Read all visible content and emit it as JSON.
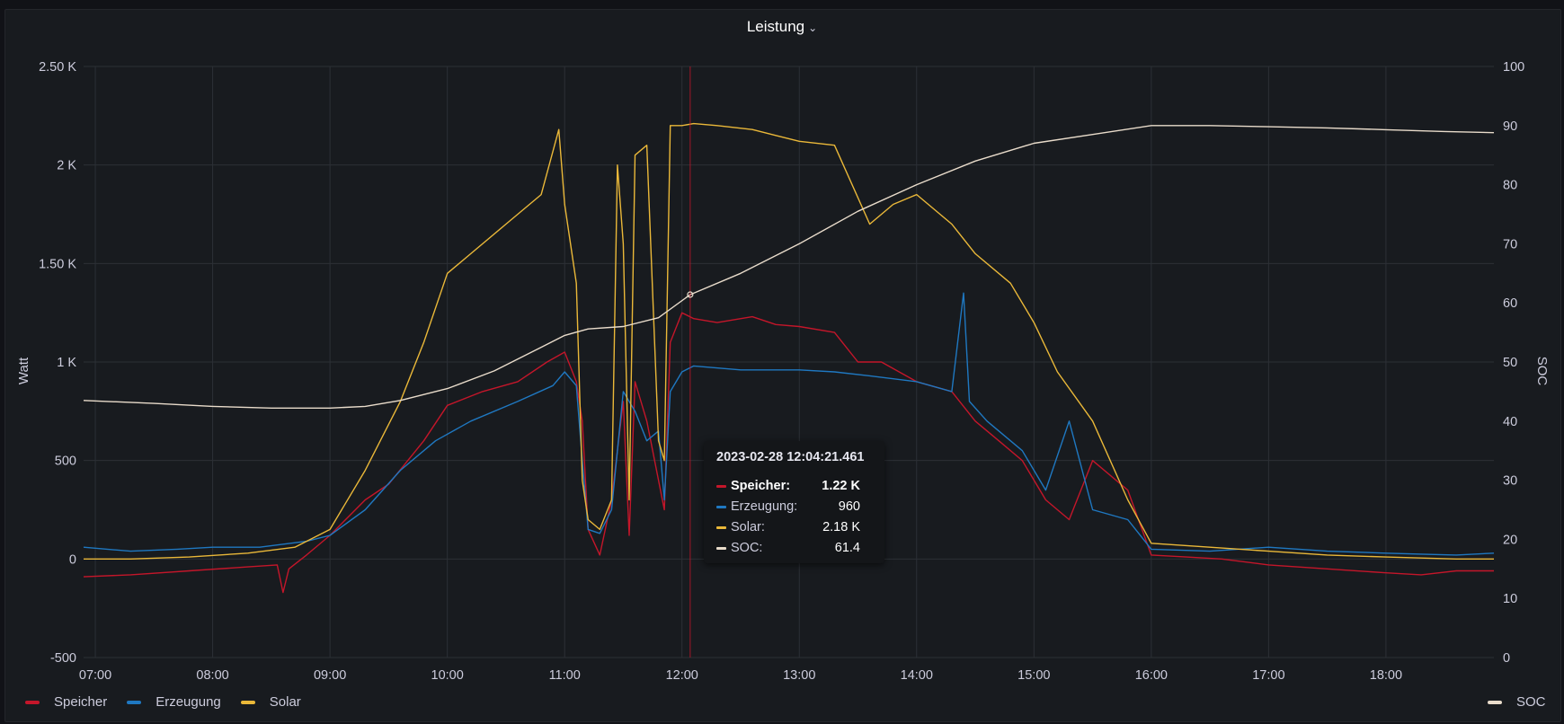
{
  "panel": {
    "title": "Leistung",
    "menu_icon": "chevron-down-icon"
  },
  "chart_data": {
    "type": "line",
    "x_ticks": [
      "07:00",
      "08:00",
      "09:00",
      "10:00",
      "11:00",
      "12:00",
      "13:00",
      "14:00",
      "15:00",
      "16:00",
      "17:00",
      "18:00"
    ],
    "y_left": {
      "label": "Watt",
      "ticks": [
        "-500",
        "0",
        "500",
        "1 K",
        "1.50 K",
        "2 K",
        "2.50 K"
      ],
      "range": [
        -500,
        2500
      ]
    },
    "y_right": {
      "label": "SOC",
      "ticks": [
        "0",
        "10",
        "20",
        "30",
        "40",
        "50",
        "60",
        "70",
        "80",
        "90",
        "100"
      ],
      "range": [
        0,
        100
      ]
    },
    "x_range_hours": [
      6.9,
      18.92
    ],
    "grid": true,
    "legend_placement": "bottom",
    "series": [
      {
        "name": "Speicher",
        "color": "#c4162a",
        "axis": "left",
        "x": [
          6.9,
          7.3,
          7.8,
          8.3,
          8.55,
          8.6,
          8.65,
          8.8,
          9.0,
          9.3,
          9.5,
          9.8,
          10.0,
          10.3,
          10.6,
          10.85,
          11.0,
          11.1,
          11.15,
          11.2,
          11.3,
          11.4,
          11.5,
          11.55,
          11.6,
          11.7,
          11.8,
          11.85,
          11.9,
          12.0,
          12.1,
          12.3,
          12.6,
          12.8,
          13.0,
          13.3,
          13.5,
          13.7,
          14.0,
          14.3,
          14.5,
          14.7,
          14.9,
          15.1,
          15.3,
          15.5,
          15.8,
          16.0,
          16.3,
          16.6,
          17.0,
          17.5,
          18.0,
          18.3,
          18.6,
          18.92
        ],
        "y": [
          -90,
          -80,
          -60,
          -40,
          -30,
          -170,
          -50,
          20,
          120,
          300,
          380,
          600,
          780,
          850,
          900,
          1000,
          1050,
          900,
          700,
          150,
          20,
          300,
          800,
          120,
          900,
          700,
          400,
          250,
          1100,
          1250,
          1220,
          1200,
          1230,
          1190,
          1180,
          1150,
          1000,
          1000,
          900,
          850,
          700,
          600,
          500,
          300,
          200,
          500,
          350,
          20,
          10,
          0,
          -30,
          -50,
          -70,
          -80,
          -60,
          -60
        ]
      },
      {
        "name": "Erzeugung",
        "color": "#1f78c1",
        "axis": "left",
        "x": [
          6.9,
          7.3,
          7.7,
          8.0,
          8.4,
          8.8,
          9.0,
          9.3,
          9.6,
          9.9,
          10.2,
          10.6,
          10.9,
          11.0,
          11.1,
          11.15,
          11.2,
          11.3,
          11.4,
          11.5,
          11.6,
          11.7,
          11.8,
          11.85,
          11.9,
          12.0,
          12.1,
          12.5,
          13.0,
          13.3,
          13.6,
          14.0,
          14.3,
          14.4,
          14.45,
          14.6,
          14.9,
          15.1,
          15.3,
          15.5,
          15.8,
          16.0,
          16.5,
          17.0,
          17.5,
          18.0,
          18.3,
          18.6,
          18.92
        ],
        "y": [
          60,
          40,
          50,
          60,
          60,
          90,
          120,
          250,
          450,
          600,
          700,
          800,
          880,
          950,
          880,
          500,
          150,
          130,
          250,
          850,
          750,
          600,
          650,
          300,
          850,
          950,
          980,
          960,
          960,
          950,
          930,
          900,
          850,
          1350,
          800,
          700,
          550,
          350,
          700,
          250,
          200,
          50,
          40,
          60,
          40,
          30,
          25,
          20,
          30
        ]
      },
      {
        "name": "Solar",
        "color": "#eab839",
        "axis": "left",
        "x": [
          6.9,
          7.3,
          7.8,
          8.3,
          8.7,
          9.0,
          9.3,
          9.6,
          9.8,
          10.0,
          10.2,
          10.5,
          10.8,
          10.95,
          11.0,
          11.1,
          11.15,
          11.2,
          11.3,
          11.4,
          11.45,
          11.5,
          11.55,
          11.6,
          11.7,
          11.8,
          11.85,
          11.9,
          12.0,
          12.1,
          12.3,
          12.6,
          12.8,
          13.0,
          13.3,
          13.6,
          13.8,
          14.0,
          14.3,
          14.5,
          14.8,
          15.0,
          15.2,
          15.5,
          15.8,
          16.0,
          16.5,
          17.0,
          17.5,
          18.0,
          18.3,
          18.6,
          18.92
        ],
        "y": [
          0,
          0,
          10,
          30,
          60,
          150,
          450,
          800,
          1100,
          1450,
          1550,
          1700,
          1850,
          2180,
          1800,
          1400,
          400,
          200,
          150,
          300,
          2000,
          1600,
          300,
          2050,
          2100,
          600,
          500,
          2200,
          2200,
          2210,
          2200,
          2180,
          2150,
          2120,
          2100,
          1700,
          1800,
          1850,
          1700,
          1550,
          1400,
          1200,
          950,
          700,
          300,
          80,
          60,
          40,
          20,
          10,
          5,
          0,
          0
        ]
      },
      {
        "name": "SOC",
        "color": "#e9dccb",
        "axis": "right",
        "x": [
          6.9,
          7.5,
          8.0,
          8.5,
          9.0,
          9.3,
          9.6,
          10.0,
          10.4,
          10.8,
          11.0,
          11.2,
          11.5,
          11.8,
          12.07,
          12.5,
          13.0,
          13.5,
          14.0,
          14.5,
          15.0,
          15.5,
          16.0,
          16.5,
          17.0,
          17.5,
          18.0,
          18.5,
          18.92
        ],
        "y": [
          43.5,
          43,
          42.5,
          42.2,
          42.2,
          42.5,
          43.5,
          45.5,
          48.5,
          52.5,
          54.5,
          55.6,
          56,
          57.5,
          61.4,
          65,
          70,
          75.5,
          80,
          84,
          87,
          88.5,
          90,
          90,
          89.8,
          89.6,
          89.3,
          89,
          88.8
        ]
      }
    ]
  },
  "crosshair_hour": 12.07,
  "tooltip": {
    "time": "2023-02-28 12:04:21.461",
    "rows": [
      {
        "name": "Speicher:",
        "value": "1.22 K",
        "color": "#c4162a",
        "bold": true
      },
      {
        "name": "Erzeugung:",
        "value": "960",
        "color": "#1f78c1",
        "bold": false
      },
      {
        "name": "Solar:",
        "value": "2.18 K",
        "color": "#eab839",
        "bold": false
      },
      {
        "name": "SOC:",
        "value": "61.4",
        "color": "#e9dccb",
        "bold": false
      }
    ]
  },
  "legend": {
    "left": [
      {
        "name": "Speicher",
        "color": "#c4162a"
      },
      {
        "name": "Erzeugung",
        "color": "#1f78c1"
      },
      {
        "name": "Solar",
        "color": "#eab839"
      }
    ],
    "right": [
      {
        "name": "SOC",
        "color": "#e9dccb"
      }
    ]
  }
}
